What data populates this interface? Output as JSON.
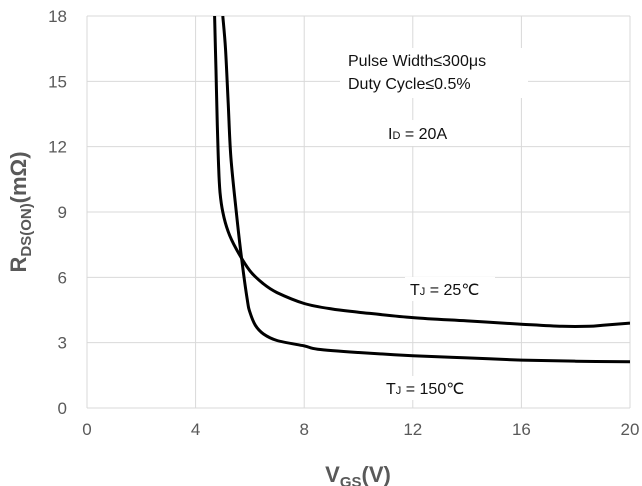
{
  "chart_data": {
    "type": "line",
    "title": "",
    "xlabel": {
      "main": "V",
      "sub": "GS",
      "unit": "(V)"
    },
    "ylabel": {
      "main": "R",
      "sub": "DS(ON)",
      "unit": "(mΩ)"
    },
    "xlim": [
      0,
      20
    ],
    "ylim": [
      0,
      18
    ],
    "xticks": [
      0,
      4,
      8,
      12,
      16,
      20
    ],
    "yticks": [
      0,
      3,
      6,
      9,
      12,
      15,
      18
    ],
    "grid": true,
    "series": [
      {
        "name": "TJ = 25°C",
        "color": "#000000",
        "x": [
          4.7,
          4.75,
          4.8,
          4.85,
          4.9,
          5.0,
          5.2,
          5.5,
          6.0,
          6.5,
          7.0,
          8.0,
          9.0,
          10.0,
          12.0,
          14.0,
          16.0,
          17.5,
          18.5,
          19.0,
          20.0
        ],
        "y": [
          18,
          15.5,
          13.0,
          11.0,
          9.9,
          9.0,
          8.1,
          7.3,
          6.3,
          5.7,
          5.3,
          4.8,
          4.55,
          4.4,
          4.15,
          4.0,
          3.85,
          3.75,
          3.75,
          3.8,
          3.9
        ]
      },
      {
        "name": "TJ = 150°C",
        "color": "#000000",
        "x": [
          5.0,
          5.1,
          5.2,
          5.3,
          5.5,
          5.7,
          5.9,
          6.0,
          6.2,
          6.5,
          7.0,
          8.0,
          8.5,
          10.0,
          12.0,
          14.0,
          16.0,
          18.0,
          20.0
        ],
        "y": [
          18,
          16.5,
          14.0,
          11.5,
          9.0,
          6.8,
          5.0,
          4.4,
          3.8,
          3.4,
          3.1,
          2.85,
          2.7,
          2.55,
          2.4,
          2.3,
          2.2,
          2.15,
          2.12
        ]
      }
    ],
    "annotations": {
      "pulse_width": "Pulse Width≤300μs",
      "duty_cycle": "Duty Cycle≤0.5%",
      "id": {
        "main": "I",
        "sub": "D",
        "rest": " = 20A"
      },
      "tj25": {
        "main": "T",
        "sub": "J",
        "rest": " = 25℃"
      },
      "tj150": {
        "main": "T",
        "sub": "J",
        "rest": " = 150℃"
      }
    }
  }
}
